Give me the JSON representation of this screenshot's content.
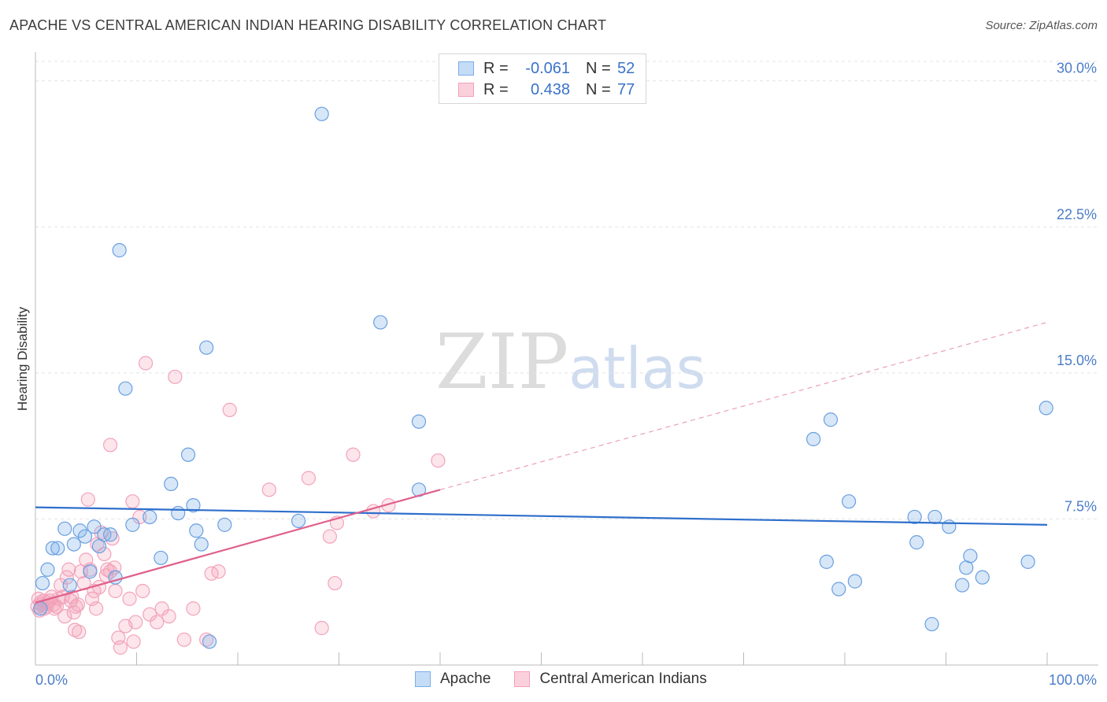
{
  "title": "APACHE VS CENTRAL AMERICAN INDIAN HEARING DISABILITY CORRELATION CHART",
  "source": "Source: ZipAtlas.com",
  "watermark": {
    "zip": "ZIP",
    "atlas": "atlas"
  },
  "legend": {
    "rows": [
      {
        "r_label": "R =",
        "r_value": "-0.061",
        "n_label": "N =",
        "n_value": "52"
      },
      {
        "r_label": "R =",
        "r_value": "0.438",
        "n_label": "N =",
        "n_value": "77"
      }
    ]
  },
  "bottom_legend": [
    "Apache",
    "Central American Indians"
  ],
  "chart_data": {
    "type": "scatter",
    "title": "APACHE VS CENTRAL AMERICAN INDIAN HEARING DISABILITY CORRELATION CHART",
    "xlabel": "",
    "ylabel": "Hearing Disability",
    "xlim": [
      0,
      100
    ],
    "ylim": [
      0,
      30
    ],
    "x_tick_labels": [
      "0.0%",
      "100.0%"
    ],
    "y_ticks": [
      7.5,
      15.0,
      22.5,
      30.0
    ],
    "y_tick_labels": [
      "7.5%",
      "15.0%",
      "22.5%",
      "30.0%"
    ],
    "grid": true,
    "legend_position": "top-center",
    "colors": {
      "apache": "#7aaee8",
      "apache_line": "#2f6fcc",
      "cai": "#f4a0b8",
      "cai_line": "#e0608c"
    },
    "series": [
      {
        "name": "Apache",
        "r": -0.061,
        "n": 52,
        "trend": {
          "x": [
            0,
            100
          ],
          "y": [
            8.1,
            7.2
          ]
        },
        "points": [
          [
            0.5,
            2.9
          ],
          [
            0.7,
            4.2
          ],
          [
            1.2,
            4.9
          ],
          [
            1.7,
            6.0
          ],
          [
            2.2,
            6.0
          ],
          [
            2.9,
            7.0
          ],
          [
            3.4,
            4.1
          ],
          [
            3.8,
            6.2
          ],
          [
            4.4,
            6.9
          ],
          [
            4.9,
            6.6
          ],
          [
            5.4,
            4.8
          ],
          [
            5.8,
            7.1
          ],
          [
            6.3,
            6.1
          ],
          [
            6.8,
            6.7
          ],
          [
            7.4,
            6.7
          ],
          [
            7.9,
            4.5
          ],
          [
            8.3,
            21.3
          ],
          [
            8.9,
            14.2
          ],
          [
            9.6,
            7.2
          ],
          [
            11.3,
            7.6
          ],
          [
            12.4,
            5.5
          ],
          [
            13.4,
            9.3
          ],
          [
            14.1,
            7.8
          ],
          [
            15.1,
            10.8
          ],
          [
            15.6,
            8.2
          ],
          [
            15.9,
            6.9
          ],
          [
            16.4,
            6.2
          ],
          [
            16.9,
            16.3
          ],
          [
            17.2,
            1.2
          ],
          [
            18.7,
            7.2
          ],
          [
            26.0,
            7.4
          ],
          [
            28.3,
            28.3
          ],
          [
            34.1,
            17.6
          ],
          [
            37.9,
            12.5
          ],
          [
            37.9,
            9.0
          ],
          [
            76.9,
            11.6
          ],
          [
            78.2,
            5.3
          ],
          [
            78.6,
            12.6
          ],
          [
            79.4,
            3.9
          ],
          [
            80.4,
            8.4
          ],
          [
            81.0,
            4.3
          ],
          [
            86.9,
            7.6
          ],
          [
            87.1,
            6.3
          ],
          [
            88.6,
            2.1
          ],
          [
            88.9,
            7.6
          ],
          [
            90.3,
            7.1
          ],
          [
            91.6,
            4.1
          ],
          [
            92.0,
            5.0
          ],
          [
            92.4,
            5.6
          ],
          [
            93.6,
            4.5
          ],
          [
            98.1,
            5.3
          ],
          [
            99.9,
            13.2
          ]
        ]
      },
      {
        "name": "Central American Indians",
        "r": 0.438,
        "n": 77,
        "trend": {
          "x": [
            0,
            40
          ],
          "y": [
            3.2,
            9.0
          ]
        },
        "trend_dashed": {
          "x": [
            40,
            100
          ],
          "y": [
            9.0,
            17.6
          ]
        },
        "points": [
          [
            0.2,
            3.0
          ],
          [
            0.3,
            3.4
          ],
          [
            0.4,
            2.8
          ],
          [
            0.5,
            3.2
          ],
          [
            0.6,
            3.1
          ],
          [
            0.8,
            3.3
          ],
          [
            0.9,
            2.9
          ],
          [
            1.1,
            3.0
          ],
          [
            1.2,
            3.2
          ],
          [
            1.4,
            3.3
          ],
          [
            1.6,
            3.5
          ],
          [
            1.8,
            3.1
          ],
          [
            1.9,
            2.9
          ],
          [
            2.1,
            3.0
          ],
          [
            2.3,
            3.4
          ],
          [
            2.5,
            4.1
          ],
          [
            2.7,
            3.5
          ],
          [
            2.9,
            2.5
          ],
          [
            3.1,
            4.5
          ],
          [
            3.3,
            4.9
          ],
          [
            3.5,
            3.3
          ],
          [
            3.6,
            3.5
          ],
          [
            3.8,
            2.7
          ],
          [
            3.9,
            1.8
          ],
          [
            4.0,
            3.0
          ],
          [
            4.2,
            3.1
          ],
          [
            4.3,
            1.7
          ],
          [
            4.5,
            4.8
          ],
          [
            4.8,
            4.2
          ],
          [
            5.0,
            5.4
          ],
          [
            5.2,
            8.5
          ],
          [
            5.4,
            4.9
          ],
          [
            5.6,
            3.4
          ],
          [
            5.8,
            3.8
          ],
          [
            6.0,
            2.9
          ],
          [
            6.1,
            6.2
          ],
          [
            6.3,
            4.0
          ],
          [
            6.5,
            6.8
          ],
          [
            6.8,
            5.7
          ],
          [
            7.1,
            4.9
          ],
          [
            7.4,
            4.8
          ],
          [
            7.6,
            6.5
          ],
          [
            7.4,
            11.3
          ],
          [
            7.8,
            5.0
          ],
          [
            7.9,
            3.8
          ],
          [
            8.2,
            1.4
          ],
          [
            8.4,
            0.9
          ],
          [
            8.9,
            2.0
          ],
          [
            9.3,
            3.4
          ],
          [
            9.6,
            8.4
          ],
          [
            9.7,
            1.2
          ],
          [
            9.9,
            2.2
          ],
          [
            10.3,
            7.6
          ],
          [
            10.6,
            3.8
          ],
          [
            10.9,
            15.5
          ],
          [
            11.3,
            2.6
          ],
          [
            12.0,
            2.2
          ],
          [
            12.5,
            2.9
          ],
          [
            13.2,
            2.5
          ],
          [
            13.8,
            14.8
          ],
          [
            14.7,
            1.3
          ],
          [
            15.6,
            2.9
          ],
          [
            16.9,
            1.3
          ],
          [
            17.4,
            4.7
          ],
          [
            18.1,
            4.8
          ],
          [
            19.2,
            13.1
          ],
          [
            23.1,
            9.0
          ],
          [
            27.0,
            9.6
          ],
          [
            28.3,
            1.9
          ],
          [
            29.1,
            6.6
          ],
          [
            29.6,
            4.2
          ],
          [
            29.8,
            7.3
          ],
          [
            31.4,
            10.8
          ],
          [
            33.4,
            7.9
          ],
          [
            34.9,
            8.2
          ],
          [
            39.8,
            10.5
          ],
          [
            7.0,
            4.6
          ]
        ]
      }
    ]
  }
}
